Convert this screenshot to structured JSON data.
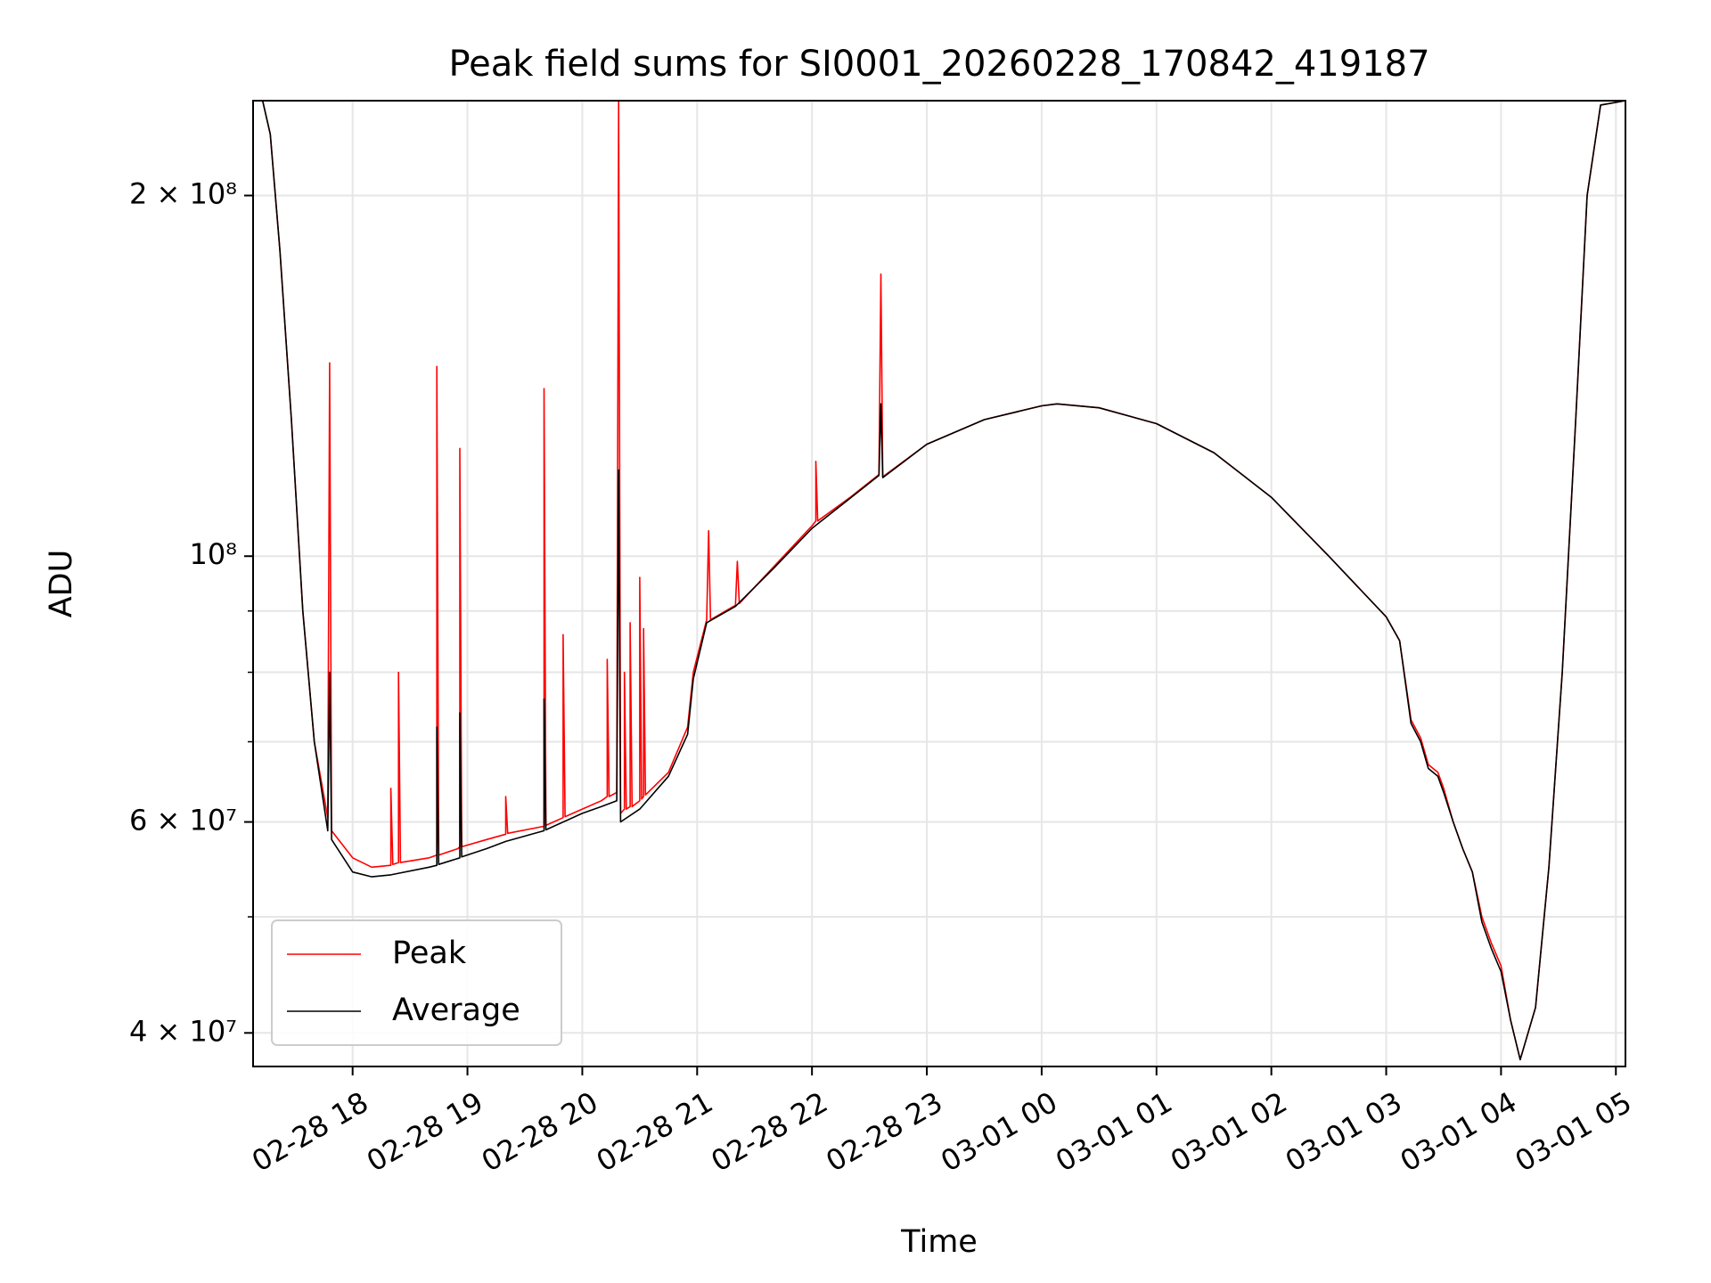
{
  "chart_data": {
    "type": "line",
    "title": "Peak field sums for SI0001_20260228_170842_419187",
    "xlabel": "Time",
    "ylabel": "ADU",
    "yscale": "log",
    "ylim": [
      37500000,
      240000000
    ],
    "xlim": [
      "2026-02-28 17:08",
      "2026-03-01 05:05"
    ],
    "x_ticks": [
      "02-28 18",
      "02-28 19",
      "02-28 20",
      "02-28 21",
      "02-28 22",
      "02-28 23",
      "03-01 00",
      "03-01 01",
      "03-01 02",
      "03-01 03",
      "03-01 04",
      "03-01 05"
    ],
    "x_tick_times": [
      "2026-02-28 18:00",
      "2026-02-28 19:00",
      "2026-02-28 20:00",
      "2026-02-28 21:00",
      "2026-02-28 22:00",
      "2026-02-28 23:00",
      "2026-03-01 00:00",
      "2026-03-01 01:00",
      "2026-03-01 02:00",
      "2026-03-01 03:00",
      "2026-03-01 04:00",
      "2026-03-01 05:00"
    ],
    "y_ticks": [
      {
        "value": 200000000,
        "label": "2 × 10⁸"
      },
      {
        "value": 100000000,
        "label": "10⁸"
      },
      {
        "value": 60000000,
        "label": "6 × 10⁷"
      },
      {
        "value": 40000000,
        "label": "4 × 10⁷"
      }
    ],
    "y_minor_ticks": [
      50000000,
      70000000,
      80000000,
      90000000
    ],
    "grid": true,
    "legend_position": "lower-left",
    "series": [
      {
        "name": "Peak",
        "color": "#ff0000",
        "points": [
          [
            "2026-02-28 17:08",
            240000000
          ],
          [
            "2026-02-28 17:13",
            240000000
          ],
          [
            "2026-02-28 17:17",
            225000000
          ],
          [
            "2026-02-28 17:22",
            180000000
          ],
          [
            "2026-02-28 17:28",
            130000000
          ],
          [
            "2026-02-28 17:34",
            90000000
          ],
          [
            "2026-02-28 17:40",
            70000000
          ],
          [
            "2026-02-28 17:47",
            60500000
          ],
          [
            "2026-02-28 17:48",
            145000000
          ],
          [
            "2026-02-28 17:49",
            59000000
          ],
          [
            "2026-02-28 18:00",
            56000000
          ],
          [
            "2026-02-28 18:10",
            55000000
          ],
          [
            "2026-02-28 18:20",
            55200000
          ],
          [
            "2026-02-28 18:20",
            64000000
          ],
          [
            "2026-02-28 18:21",
            55300000
          ],
          [
            "2026-02-28 18:24",
            55500000
          ],
          [
            "2026-02-28 18:24",
            80000000
          ],
          [
            "2026-02-28 18:25",
            55500000
          ],
          [
            "2026-02-28 18:40",
            56000000
          ],
          [
            "2026-02-28 18:44",
            56300000
          ],
          [
            "2026-02-28 18:44",
            144000000
          ],
          [
            "2026-02-28 18:45",
            56300000
          ],
          [
            "2026-02-28 18:55",
            57000000
          ],
          [
            "2026-02-28 18:56",
            57200000
          ],
          [
            "2026-02-28 18:56",
            123000000
          ],
          [
            "2026-02-28 18:57",
            57200000
          ],
          [
            "2026-02-28 19:10",
            58000000
          ],
          [
            "2026-02-28 19:20",
            58600000
          ],
          [
            "2026-02-28 19:20",
            63000000
          ],
          [
            "2026-02-28 19:21",
            58700000
          ],
          [
            "2026-02-28 19:40",
            59500000
          ],
          [
            "2026-02-28 19:40",
            138000000
          ],
          [
            "2026-02-28 19:41",
            59600000
          ],
          [
            "2026-02-28 19:50",
            60500000
          ],
          [
            "2026-02-28 19:50",
            86000000
          ],
          [
            "2026-02-28 19:51",
            60600000
          ],
          [
            "2026-02-28 20:00",
            61500000
          ],
          [
            "2026-02-28 20:10",
            62500000
          ],
          [
            "2026-02-28 20:13",
            63000000
          ],
          [
            "2026-02-28 20:13",
            82000000
          ],
          [
            "2026-02-28 20:14",
            63000000
          ],
          [
            "2026-02-28 20:18",
            63500000
          ],
          [
            "2026-02-28 20:19",
            240000000
          ],
          [
            "2026-02-28 20:20",
            61000000
          ],
          [
            "2026-02-28 20:22",
            61500000
          ],
          [
            "2026-02-28 20:22",
            80000000
          ],
          [
            "2026-02-28 20:23",
            61500000
          ],
          [
            "2026-02-28 20:25",
            61800000
          ],
          [
            "2026-02-28 20:25",
            88000000
          ],
          [
            "2026-02-28 20:26",
            61800000
          ],
          [
            "2026-02-28 20:30",
            62500000
          ],
          [
            "2026-02-28 20:30",
            96000000
          ],
          [
            "2026-02-28 20:31",
            62700000
          ],
          [
            "2026-02-28 20:32",
            63000000
          ],
          [
            "2026-02-28 20:32",
            87000000
          ],
          [
            "2026-02-28 20:33",
            63200000
          ],
          [
            "2026-02-28 20:45",
            66000000
          ],
          [
            "2026-02-28 20:55",
            72000000
          ],
          [
            "2026-02-28 20:58",
            80000000
          ],
          [
            "2026-02-28 21:05",
            88500000
          ],
          [
            "2026-02-28 21:06",
            105000000
          ],
          [
            "2026-02-28 21:07",
            88500000
          ],
          [
            "2026-02-28 21:20",
            91000000
          ],
          [
            "2026-02-28 21:21",
            99000000
          ],
          [
            "2026-02-28 21:22",
            91300000
          ],
          [
            "2026-02-28 21:40",
            98000000
          ],
          [
            "2026-02-28 22:00",
            106000000
          ],
          [
            "2026-02-28 22:02",
            107000000
          ],
          [
            "2026-02-28 22:02",
            120000000
          ],
          [
            "2026-02-28 22:03",
            107000000
          ],
          [
            "2026-02-28 22:20",
            112000000
          ],
          [
            "2026-02-28 22:35",
            117000000
          ],
          [
            "2026-02-28 22:36",
            172000000
          ],
          [
            "2026-02-28 22:37",
            116500000
          ],
          [
            "2026-02-28 23:00",
            124000000
          ],
          [
            "2026-02-28 23:30",
            130000000
          ],
          [
            "2026-03-01 00:00",
            133500000
          ],
          [
            "2026-03-01 00:08",
            134000000
          ],
          [
            "2026-03-01 00:30",
            133000000
          ],
          [
            "2026-03-01 01:00",
            129000000
          ],
          [
            "2026-03-01 01:30",
            122000000
          ],
          [
            "2026-03-01 02:00",
            112000000
          ],
          [
            "2026-03-01 02:30",
            100000000
          ],
          [
            "2026-03-01 03:00",
            89000000
          ],
          [
            "2026-03-01 03:07",
            85000000
          ],
          [
            "2026-03-01 03:13",
            73000000
          ],
          [
            "2026-03-01 03:18",
            70500000
          ],
          [
            "2026-03-01 03:22",
            67000000
          ],
          [
            "2026-03-01 03:27",
            66000000
          ],
          [
            "2026-03-01 03:30",
            64000000
          ],
          [
            "2026-03-01 03:35",
            60000000
          ],
          [
            "2026-03-01 03:40",
            57000000
          ],
          [
            "2026-03-01 03:45",
            54500000
          ],
          [
            "2026-03-01 03:50",
            50000000
          ],
          [
            "2026-03-01 03:55",
            47500000
          ],
          [
            "2026-03-01 04:00",
            45500000
          ],
          [
            "2026-03-01 04:05",
            41000000
          ],
          [
            "2026-03-01 04:10",
            38000000
          ],
          [
            "2026-03-01 04:18",
            42000000
          ],
          [
            "2026-03-01 04:25",
            55000000
          ],
          [
            "2026-03-01 04:32",
            80000000
          ],
          [
            "2026-03-01 04:39",
            130000000
          ],
          [
            "2026-03-01 04:45",
            200000000
          ],
          [
            "2026-03-01 04:52",
            238000000
          ],
          [
            "2026-03-01 05:05",
            240000000
          ]
        ]
      },
      {
        "name": "Average",
        "color": "#000000",
        "points": [
          [
            "2026-02-28 17:08",
            240000000
          ],
          [
            "2026-02-28 17:13",
            240000000
          ],
          [
            "2026-02-28 17:17",
            225000000
          ],
          [
            "2026-02-28 17:22",
            180000000
          ],
          [
            "2026-02-28 17:28",
            130000000
          ],
          [
            "2026-02-28 17:34",
            90000000
          ],
          [
            "2026-02-28 17:40",
            70000000
          ],
          [
            "2026-02-28 17:47",
            59000000
          ],
          [
            "2026-02-28 17:48",
            80000000
          ],
          [
            "2026-02-28 17:49",
            58000000
          ],
          [
            "2026-02-28 18:00",
            54500000
          ],
          [
            "2026-02-28 18:10",
            54000000
          ],
          [
            "2026-02-28 18:20",
            54200000
          ],
          [
            "2026-02-28 18:40",
            55000000
          ],
          [
            "2026-02-28 18:44",
            55200000
          ],
          [
            "2026-02-28 18:44",
            72000000
          ],
          [
            "2026-02-28 18:45",
            55300000
          ],
          [
            "2026-02-28 18:56",
            56000000
          ],
          [
            "2026-02-28 18:56",
            74000000
          ],
          [
            "2026-02-28 18:57",
            56100000
          ],
          [
            "2026-02-28 19:10",
            57000000
          ],
          [
            "2026-02-28 19:20",
            57800000
          ],
          [
            "2026-02-28 19:40",
            59000000
          ],
          [
            "2026-02-28 19:40",
            76000000
          ],
          [
            "2026-02-28 19:41",
            59100000
          ],
          [
            "2026-02-28 20:00",
            61000000
          ],
          [
            "2026-02-28 20:10",
            61800000
          ],
          [
            "2026-02-28 20:18",
            62500000
          ],
          [
            "2026-02-28 20:19",
            118000000
          ],
          [
            "2026-02-28 20:20",
            60000000
          ],
          [
            "2026-02-28 20:30",
            61500000
          ],
          [
            "2026-02-28 20:45",
            65500000
          ],
          [
            "2026-02-28 20:55",
            71000000
          ],
          [
            "2026-02-28 20:58",
            79000000
          ],
          [
            "2026-02-28 21:05",
            88000000
          ],
          [
            "2026-02-28 21:20",
            90800000
          ],
          [
            "2026-02-28 21:40",
            97700000
          ],
          [
            "2026-02-28 22:00",
            105500000
          ],
          [
            "2026-02-28 22:20",
            111800000
          ],
          [
            "2026-02-28 22:35",
            116800000
          ],
          [
            "2026-02-28 22:36",
            134000000
          ],
          [
            "2026-02-28 22:37",
            116300000
          ],
          [
            "2026-02-28 23:00",
            124000000
          ],
          [
            "2026-02-28 23:30",
            130000000
          ],
          [
            "2026-03-01 00:00",
            133500000
          ],
          [
            "2026-03-01 00:08",
            134000000
          ],
          [
            "2026-03-01 00:30",
            133000000
          ],
          [
            "2026-03-01 01:00",
            129000000
          ],
          [
            "2026-03-01 01:30",
            122000000
          ],
          [
            "2026-03-01 02:00",
            112000000
          ],
          [
            "2026-03-01 02:30",
            100000000
          ],
          [
            "2026-03-01 03:00",
            89000000
          ],
          [
            "2026-03-01 03:07",
            85000000
          ],
          [
            "2026-03-01 03:13",
            72500000
          ],
          [
            "2026-03-01 03:18",
            70000000
          ],
          [
            "2026-03-01 03:22",
            66500000
          ],
          [
            "2026-03-01 03:27",
            65500000
          ],
          [
            "2026-03-01 03:30",
            63500000
          ],
          [
            "2026-03-01 03:35",
            60000000
          ],
          [
            "2026-03-01 03:40",
            57000000
          ],
          [
            "2026-03-01 03:45",
            54500000
          ],
          [
            "2026-03-01 03:50",
            49500000
          ],
          [
            "2026-03-01 03:55",
            47000000
          ],
          [
            "2026-03-01 04:00",
            45000000
          ],
          [
            "2026-03-01 04:05",
            41000000
          ],
          [
            "2026-03-01 04:10",
            38000000
          ],
          [
            "2026-03-01 04:18",
            42000000
          ],
          [
            "2026-03-01 04:25",
            55000000
          ],
          [
            "2026-03-01 04:32",
            80000000
          ],
          [
            "2026-03-01 04:39",
            130000000
          ],
          [
            "2026-03-01 04:45",
            200000000
          ],
          [
            "2026-03-01 04:52",
            238000000
          ],
          [
            "2026-03-01 05:05",
            240000000
          ]
        ]
      }
    ]
  }
}
